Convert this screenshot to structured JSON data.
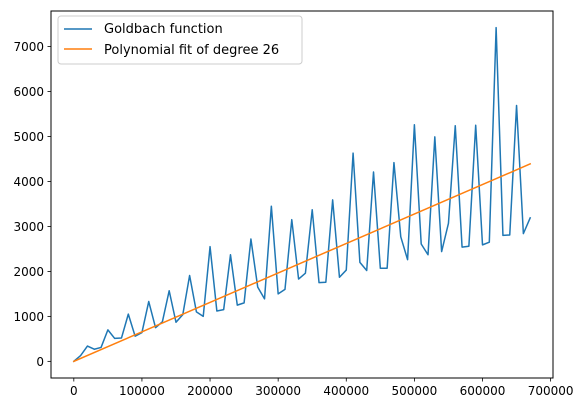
{
  "chart_data": {
    "type": "line",
    "title": "",
    "xlabel": "",
    "ylabel": "",
    "xlim": [
      -33500,
      703500
    ],
    "ylim": [
      -370,
      7790
    ],
    "xticks": [
      0,
      100000,
      200000,
      300000,
      400000,
      500000,
      600000,
      700000
    ],
    "yticks": [
      0,
      1000,
      2000,
      3000,
      4000,
      5000,
      6000,
      7000
    ],
    "grid": false,
    "legend_position": "top-left",
    "series": [
      {
        "name": "Goldbach function",
        "color": "#1f77b4",
        "x": [
          0,
          10000,
          20000,
          30000,
          40000,
          50000,
          60000,
          70000,
          80000,
          90000,
          100000,
          110000,
          120000,
          130000,
          140000,
          150000,
          160000,
          170000,
          180000,
          190000,
          200000,
          210000,
          220000,
          230000,
          240000,
          250000,
          260000,
          270000,
          280000,
          290000,
          300000,
          310000,
          320000,
          330000,
          340000,
          350000,
          360000,
          370000,
          380000,
          390000,
          400000,
          410000,
          420000,
          430000,
          440000,
          450000,
          460000,
          470000,
          480000,
          490000,
          500000,
          510000,
          520000,
          530000,
          540000,
          550000,
          560000,
          570000,
          580000,
          590000,
          600000,
          610000,
          620000,
          630000,
          640000,
          650000,
          660000,
          670000
        ],
        "y": [
          0,
          130,
          340,
          270,
          310,
          700,
          510,
          520,
          1050,
          560,
          640,
          1330,
          750,
          880,
          1570,
          870,
          1040,
          1910,
          1100,
          1000,
          2550,
          1120,
          1150,
          2370,
          1250,
          1300,
          2720,
          1650,
          1390,
          3450,
          1500,
          1600,
          3150,
          1830,
          1960,
          3370,
          1750,
          1760,
          3590,
          1870,
          2030,
          4630,
          2200,
          2020,
          4210,
          2070,
          2070,
          4420,
          2770,
          2260,
          5260,
          2610,
          2370,
          4990,
          2440,
          3070,
          5240,
          2540,
          2560,
          5250,
          2590,
          2650,
          7420,
          2800,
          2810,
          5690,
          2840,
          3190
        ]
      },
      {
        "name": "Polynomial fit of degree 26",
        "color": "#ff7f0e",
        "x": [
          0,
          670000
        ],
        "y": [
          0,
          4390
        ]
      }
    ]
  }
}
